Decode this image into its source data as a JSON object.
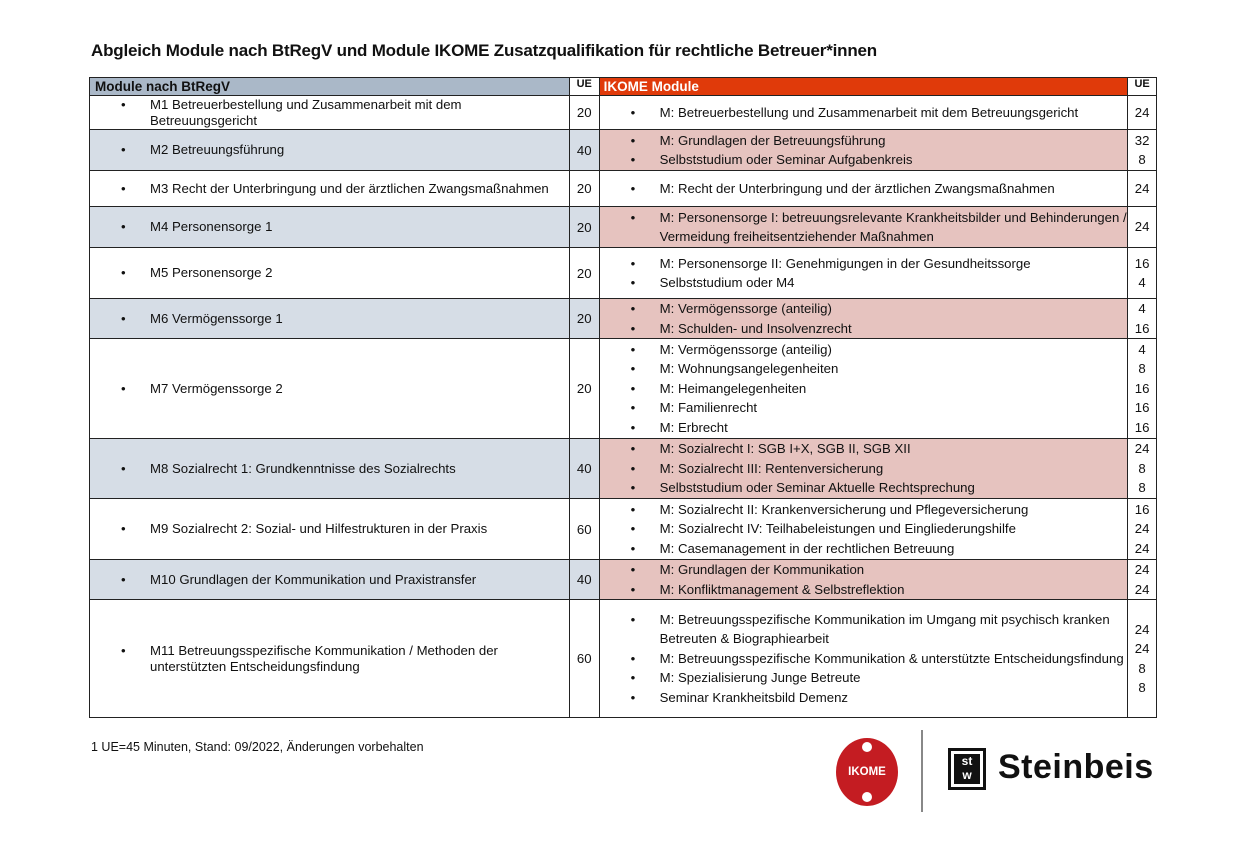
{
  "title": "Abgleich Module nach BtRegV und Module IKOME Zusatzqualifikation für rechtliche Betreuer*innen",
  "table": {
    "headers": {
      "left": "Module nach BtRegV",
      "left_ue": "UE",
      "right": "IKOME Module",
      "right_ue": "UE"
    },
    "colors": {
      "left_header": "#aab8c8",
      "right_header": "#e03a0a",
      "left_shade": "#d6dde6",
      "right_shade": "#e6c3bf"
    },
    "rows": [
      {
        "module": "M1 Betreuerbestellung und Zusammenarbeit mit dem Betreuungsgericht",
        "ue": "20",
        "shaded": false,
        "h": 34,
        "items": [
          {
            "t": "M: Betreuerbestellung und Zusammenarbeit mit dem Betreuungsgericht",
            "ue": "24"
          }
        ]
      },
      {
        "module": "M2 Betreuungsführung",
        "ue": "40",
        "shaded": true,
        "h": 41,
        "items": [
          {
            "t": "M: Grundlagen der Betreuungsführung",
            "ue": "32"
          },
          {
            "t": "Selbststudium oder Seminar Aufgabenkreis",
            "ue": "8"
          }
        ]
      },
      {
        "module": "M3 Recht der Unterbringung und der ärztlichen Zwangsmaßnahmen",
        "ue": "20",
        "shaded": false,
        "h": 36,
        "items": [
          {
            "t": "M: Recht der Unterbringung und der ärztlichen Zwangsmaßnahmen",
            "ue": "24"
          }
        ]
      },
      {
        "module": "M4 Personensorge 1",
        "ue": "20",
        "shaded": true,
        "h": 41,
        "items": [
          {
            "t": "M: Personensorge I: betreuungsrelevante Krankheitsbilder und Behinderungen / Vermeidung freiheitsentziehender Maßnahmen",
            "ue": "24"
          }
        ]
      },
      {
        "module": "M5 Personensorge 2",
        "ue": "20",
        "shaded": false,
        "h": 51,
        "items": [
          {
            "t": "M: Personensorge II: Genehmigungen in der Gesundheitssorge",
            "ue": "16"
          },
          {
            "t": "Selbststudium oder M4",
            "ue": "4"
          }
        ]
      },
      {
        "module": "M6 Vermögenssorge 1",
        "ue": "20",
        "shaded": true,
        "h": 40,
        "items": [
          {
            "t": "M: Vermögenssorge (anteilig)",
            "ue": "4"
          },
          {
            "t": "M: Schulden- und Insolvenzrecht",
            "ue": "16"
          }
        ]
      },
      {
        "module": "M7 Vermögenssorge 2",
        "ue": "20",
        "shaded": false,
        "h": 100,
        "items": [
          {
            "t": "M: Vermögenssorge (anteilig)",
            "ue": "4"
          },
          {
            "t": "M: Wohnungsangelegenheiten",
            "ue": "8"
          },
          {
            "t": "M: Heimangelegenheiten",
            "ue": "16"
          },
          {
            "t": "M: Familienrecht",
            "ue": "16"
          },
          {
            "t": "M: Erbrecht",
            "ue": "16"
          }
        ]
      },
      {
        "module": "M8 Sozialrecht 1: Grundkenntnisse des Sozialrechts",
        "ue": "40",
        "shaded": true,
        "h": 60,
        "items": [
          {
            "t": "M: Sozialrecht I: SGB I+X, SGB II, SGB XII",
            "ue": "24"
          },
          {
            "t": "M: Sozialrecht III: Rentenversicherung",
            "ue": "8"
          },
          {
            "t": "Selbststudium oder Seminar Aktuelle Rechtsprechung",
            "ue": "8"
          }
        ]
      },
      {
        "module": "M9 Sozialrecht 2: Sozial- und Hilfestrukturen in der Praxis",
        "ue": "60",
        "shaded": false,
        "h": 61,
        "items": [
          {
            "t": "M: Sozialrecht II: Krankenversicherung und Pflegeversicherung",
            "ue": "16"
          },
          {
            "t": "M: Sozialrecht IV: Teilhabeleistungen und Eingliederungshilfe",
            "ue": "24"
          },
          {
            "t": "M: Casemanagement in der rechtlichen Betreuung",
            "ue": "24"
          }
        ]
      },
      {
        "module": "M10 Grundlagen der Kommunikation und Praxistransfer",
        "ue": "40",
        "shaded": true,
        "h": 40,
        "items": [
          {
            "t": "M: Grundlagen der Kommunikation",
            "ue": "24"
          },
          {
            "t": "M: Konfliktmanagement & Selbstreflektion",
            "ue": "24"
          }
        ]
      },
      {
        "module": "M11 Betreuungsspezifische Kommunikation / Methoden der unterstützten Entscheidungsfindung",
        "ue": "60",
        "shaded": false,
        "h": 118,
        "items": [
          {
            "t": "M: Betreuungsspezifische Kommunikation im Umgang mit psychisch kranken Betreuten & Biographiearbeit",
            "ue": "24"
          },
          {
            "t": "M: Betreuungsspezifische Kommunikation & unterstützte Entscheidungsfindung",
            "ue": "24"
          },
          {
            "t": "M: Spezialisierung Junge Betreute",
            "ue": "8"
          },
          {
            "t": "Seminar Krankheitsbild Demenz",
            "ue": "8"
          }
        ]
      }
    ]
  },
  "footer": "1 UE=45 Minuten, Stand: 09/2022, Änderungen vorbehalten",
  "logos": {
    "ikome": "IKOME",
    "stw": "st w",
    "steinbeis": "Steinbeis"
  }
}
